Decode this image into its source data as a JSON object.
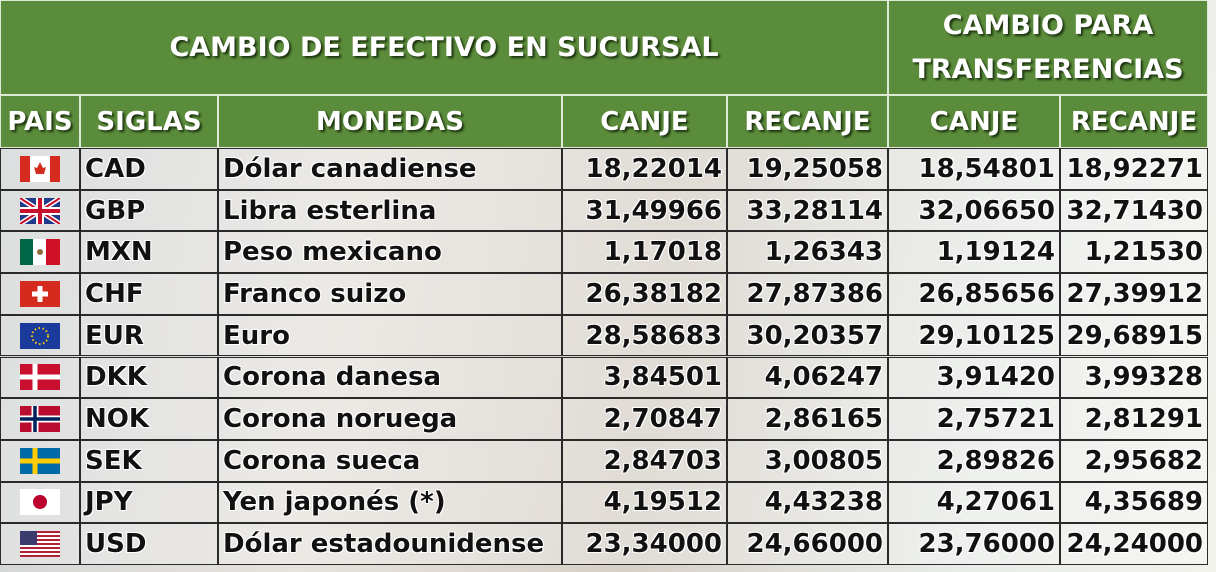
{
  "header": {
    "title": "CAMBIO DE EFECTIVO EN SUCURSAL",
    "transfer_title": "CAMBIO PARA TRANSFERENCIAS"
  },
  "columns": [
    "PAIS",
    "SIGLAS",
    "MONEDAS",
    "CANJE",
    "RECANJE",
    "CANJE",
    "RECANJE"
  ],
  "rows": [
    [
      "CAD",
      "Dólar canadiense",
      "18,22014",
      "19,25058",
      "18,54801",
      "18,92271"
    ],
    [
      "GBP",
      "Libra  esterlina",
      "31,49966",
      "33,28114",
      "32,06650",
      "32,71430"
    ],
    [
      "MXN",
      "Peso mexicano",
      "1,17018",
      "1,26343",
      "1,19124",
      "1,21530"
    ],
    [
      "CHF",
      "Franco suizo",
      "26,38182",
      "27,87386",
      "26,85656",
      "27,39912"
    ],
    [
      "EUR",
      "Euro",
      "28,58683",
      "30,20357",
      "29,10125",
      "29,68915"
    ],
    [
      "DKK",
      "Corona danesa",
      "3,84501",
      "4,06247",
      "3,91420",
      "3,99328"
    ],
    [
      "NOK",
      "Corona noruega",
      "2,70847",
      "2,86165",
      "2,75721",
      "2,81291"
    ],
    [
      "SEK",
      "Corona sueca",
      "2,84703",
      "3,00805",
      "2,89826",
      "2,95682"
    ],
    [
      "JPY",
      "Yen japonés (*)",
      "4,19512",
      "4,43238",
      "4,27061",
      "4,35689"
    ],
    [
      "USD",
      "Dólar estadounidense",
      "23,34000",
      "24,66000",
      "23,76000",
      "24,24000"
    ]
  ]
}
